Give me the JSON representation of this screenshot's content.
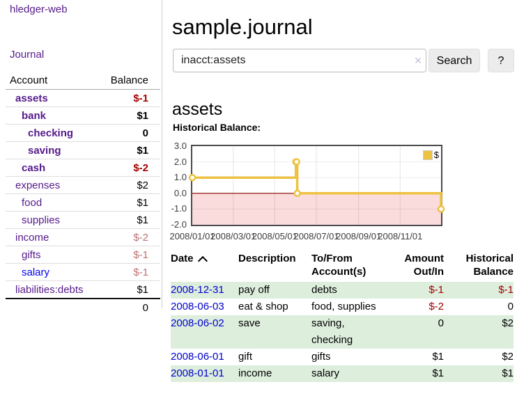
{
  "app": {
    "brand": "hledger-web"
  },
  "sidebar": {
    "journal_link": "Journal",
    "table": {
      "account_header": "Account",
      "balance_header": "Balance",
      "accounts": [
        {
          "name": "assets",
          "balance": "$-1"
        },
        {
          "name": "bank",
          "balance": "$1"
        },
        {
          "name": "checking",
          "balance": "0"
        },
        {
          "name": "saving",
          "balance": "$1"
        },
        {
          "name": "cash",
          "balance": "$-2"
        },
        {
          "name": "expenses",
          "balance": "$2"
        },
        {
          "name": "food",
          "balance": "$1"
        },
        {
          "name": "supplies",
          "balance": "$1"
        },
        {
          "name": "income",
          "balance": "$-2"
        },
        {
          "name": "gifts",
          "balance": "$-1"
        },
        {
          "name": "salary",
          "balance": "$-1"
        },
        {
          "name": "liabilities:debts",
          "balance": "$1"
        }
      ],
      "total": "0"
    }
  },
  "main": {
    "title": "sample.journal",
    "search": {
      "value": "inacct:assets",
      "clear_icon": "×",
      "button": "Search",
      "help_button": "?"
    },
    "account_heading": "assets",
    "chart_heading": "Historical Balance:"
  },
  "chart_data": {
    "type": "line",
    "title": "Historical Balance:",
    "style": "step-after",
    "series": [
      {
        "name": "$",
        "color": "#edc240",
        "points": [
          {
            "date": "2008-01-01",
            "day": 0,
            "value": 1
          },
          {
            "date": "2008-06-01",
            "day": 152,
            "value": 2
          },
          {
            "date": "2008-06-02",
            "day": 153,
            "value": 2
          },
          {
            "date": "2008-06-03",
            "day": 154,
            "value": 0
          },
          {
            "date": "2008-12-31",
            "day": 365,
            "value": -1
          }
        ]
      }
    ],
    "x_domain_days": [
      0,
      365
    ],
    "x_ticks": [
      {
        "label": "2008/01/01",
        "day": 0
      },
      {
        "label": "2008/03/01",
        "day": 60
      },
      {
        "label": "2008/05/01",
        "day": 121
      },
      {
        "label": "2008/07/01",
        "day": 182
      },
      {
        "label": "2008/09/01",
        "day": 244
      },
      {
        "label": "2008/11/01",
        "day": 305
      }
    ],
    "y_ticks": [
      {
        "label": "3.0",
        "value": 3
      },
      {
        "label": "2.0",
        "value": 2
      },
      {
        "label": "1.0",
        "value": 1
      },
      {
        "label": "0.0",
        "value": 0
      },
      {
        "label": "-1.0",
        "value": -1
      },
      {
        "label": "-2.0",
        "value": -2
      }
    ],
    "ylim": [
      -2,
      3
    ],
    "grid": true,
    "legend": {
      "label": "$",
      "position": "top-right"
    },
    "negative_region_color": "#fbdcdc",
    "zero_line_color": "#8b0000"
  },
  "register": {
    "headers": {
      "date": "Date",
      "sort": "ascending",
      "description": "Description",
      "account_line1": "To/From",
      "account_line2": "Account(s)",
      "amount_line1": "Amount",
      "amount_line2": "Out/In",
      "balance_line1": "Historical",
      "balance_line2": "Balance"
    },
    "rows": [
      {
        "date": "2008-12-31",
        "description": "pay off",
        "accounts": "debts",
        "amount": "$-1",
        "balance": "$-1"
      },
      {
        "date": "2008-06-03",
        "description": "eat & shop",
        "accounts": "food, supplies",
        "amount": "$-2",
        "balance": "0"
      },
      {
        "date": "2008-06-02",
        "description": "save",
        "accounts": "saving, checking",
        "amount": "0",
        "balance": "$2"
      },
      {
        "date": "2008-06-01",
        "description": "gift",
        "accounts": "gifts",
        "amount": "$1",
        "balance": "$2"
      },
      {
        "date": "2008-01-01",
        "description": "income",
        "accounts": "salary",
        "amount": "$1",
        "balance": "$1"
      }
    ]
  },
  "colors": {
    "link_purple": "#551a8b",
    "link_blue": "#0000ee",
    "date_link_blue": "#0000cc",
    "negative_strong": "#a40000",
    "negative_soft": "#bc7272",
    "row_stripe_green": "#ddeedd",
    "chart_line_gold": "#edc240",
    "chart_negative_fill": "#fbdcdc",
    "chart_zero_line": "#8b0000",
    "button_gray": "#ececec"
  }
}
